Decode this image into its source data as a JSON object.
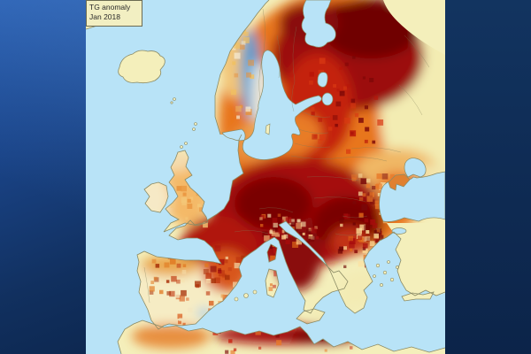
{
  "map": {
    "title_box": {
      "line1": "TG anomaly",
      "line2": "Jan 2018"
    },
    "variable": "TG anomaly",
    "period": "Jan 2018",
    "region_shown": "Europe and surrounding seas",
    "colors": {
      "sea": "#b8e3f7",
      "no_data_land": "#f4efbb",
      "coastline": "#8a8a64",
      "warm_extreme": "#6f0404",
      "warm_strong": "#a50f0f",
      "warm_moderate": "#e87c28",
      "warm_mild": "#f2c577",
      "near_normal": "#f6ecc4",
      "cold_anomaly": "#5f9ccc",
      "panel_navy_light": "#1d4f98",
      "panel_navy_dark": "#0c2449",
      "title_box_bg": "#f2efc2"
    },
    "map_data": {
      "type": "temperature-anomaly-choropleth",
      "regions": [
        {
          "name": "Northwest Russia / Kola / Finland",
          "anomaly": "very strong warm (dark red)"
        },
        {
          "name": "Central Europe (France, Germany, Poland, Alps)",
          "anomaly": "very strong warm (dark red)"
        },
        {
          "name": "Balkans / Italy",
          "anomaly": "strong warm, mottled dark red"
        },
        {
          "name": "Eastern Russia (map east edge)",
          "anomaly": "fades to near normal (pale yellow)"
        },
        {
          "name": "Scandinavian mountains (Norway/Sweden spine)",
          "anomaly": "cold (blue)"
        },
        {
          "name": "Sweden lowlands",
          "anomaly": "near normal (pale)"
        },
        {
          "name": "British Isles",
          "anomaly": "mild warm (orange), Ireland near normal"
        },
        {
          "name": "Iberian Peninsula",
          "anomaly": "near normal with warm speckles, small cold spot in southeast"
        },
        {
          "name": "Northeast Spain / S France coast",
          "anomaly": "moderate warm (red-orange)"
        },
        {
          "name": "North Africa coast (Algeria)",
          "anomaly": "strong warm band (dark red)"
        },
        {
          "name": "Morocco",
          "anomaly": "moderate warm (orange)"
        },
        {
          "name": "Turkey / Libya / far northeast",
          "anomaly": "no data (pale yellow land)"
        }
      ]
    }
  }
}
